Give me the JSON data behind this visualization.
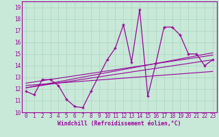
{
  "title": "",
  "xlabel": "Windchill (Refroidissement éolien,°C)",
  "ylabel": "",
  "bg_color": "#c8e8d8",
  "line_color": "#990099",
  "grid_color": "#aad4c0",
  "xlim": [
    -0.5,
    23.5
  ],
  "ylim": [
    10,
    19.5
  ],
  "xticks": [
    0,
    1,
    2,
    3,
    4,
    5,
    6,
    7,
    8,
    9,
    10,
    11,
    12,
    13,
    14,
    15,
    16,
    17,
    18,
    19,
    20,
    21,
    22,
    23
  ],
  "yticks": [
    10,
    11,
    12,
    13,
    14,
    15,
    16,
    17,
    18,
    19
  ],
  "series1_x": [
    0,
    1,
    2,
    3,
    4,
    5,
    6,
    7,
    8,
    10,
    11,
    12,
    13,
    14,
    15,
    16,
    17,
    18,
    19,
    20,
    21,
    22,
    23
  ],
  "series1_y": [
    11.8,
    11.5,
    12.8,
    12.8,
    12.3,
    11.1,
    10.5,
    10.4,
    11.8,
    14.5,
    15.5,
    17.5,
    14.3,
    18.8,
    11.4,
    14.2,
    17.3,
    17.3,
    16.6,
    15.0,
    15.0,
    14.0,
    14.5
  ],
  "series2_x": [
    0,
    23
  ],
  "series2_y": [
    12.1,
    14.5
  ],
  "series3_x": [
    0,
    23
  ],
  "series3_y": [
    12.3,
    13.5
  ],
  "series4_x": [
    0,
    23
  ],
  "series4_y": [
    12.5,
    14.9
  ],
  "series5_x": [
    0,
    23
  ],
  "series5_y": [
    12.1,
    15.1
  ],
  "tick_fontsize": 5.5,
  "xlabel_fontsize": 5.8
}
